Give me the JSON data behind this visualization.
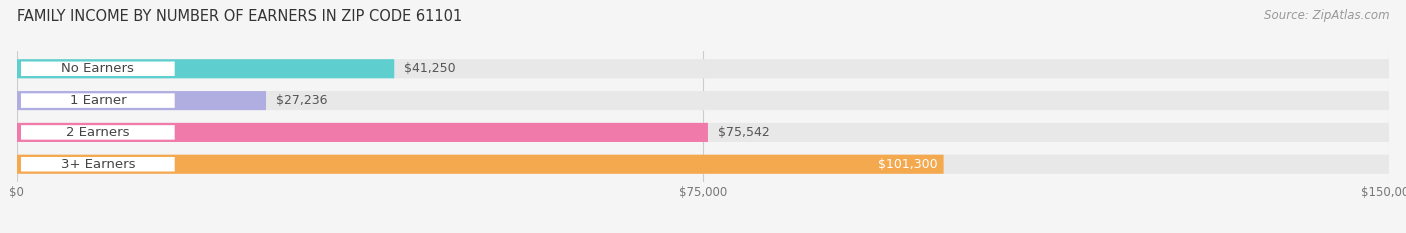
{
  "title": "FAMILY INCOME BY NUMBER OF EARNERS IN ZIP CODE 61101",
  "source": "Source: ZipAtlas.com",
  "categories": [
    "No Earners",
    "1 Earner",
    "2 Earners",
    "3+ Earners"
  ],
  "values": [
    41250,
    27236,
    75542,
    101300
  ],
  "bar_colors": [
    "#5ecfce",
    "#b0aee0",
    "#f07aaa",
    "#f5a94e"
  ],
  "value_labels": [
    "$41,250",
    "$27,236",
    "$75,542",
    "$101,300"
  ],
  "xlim": [
    0,
    150000
  ],
  "xticks": [
    0,
    75000,
    150000
  ],
  "xtick_labels": [
    "$0",
    "$75,000",
    "$150,000"
  ],
  "background_color": "#f5f5f5",
  "bar_background_color": "#e8e8e8",
  "title_fontsize": 10.5,
  "source_fontsize": 8.5,
  "label_fontsize": 9.5,
  "value_fontsize": 9
}
